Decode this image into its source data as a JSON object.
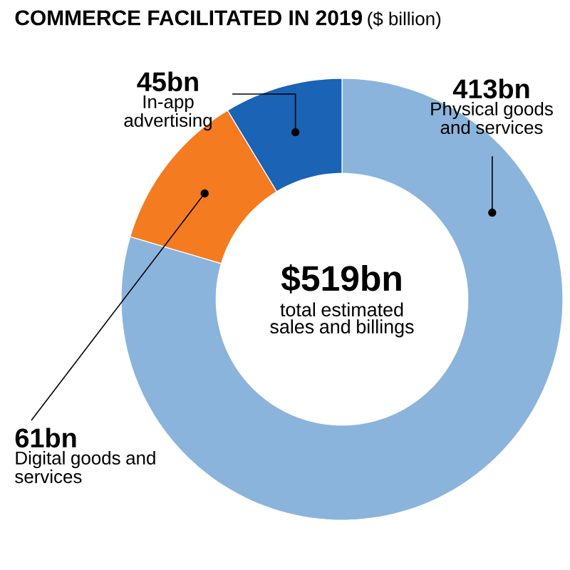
{
  "chart_data": {
    "type": "donut",
    "title": "COMMERCE FACILITATED IN 2019",
    "subtitle": "($ billion)",
    "categories": [
      "Physical goods and services",
      "Digital goods and services",
      "In-app advertising"
    ],
    "values": [
      413,
      61,
      45
    ],
    "value_labels": [
      "413bn",
      "61bn",
      "45bn"
    ],
    "colors": [
      "#8ab4dc",
      "#f47b20",
      "#1a63b5"
    ],
    "annotations": [
      "$519bn",
      "total estimated sales and billings"
    ]
  }
}
